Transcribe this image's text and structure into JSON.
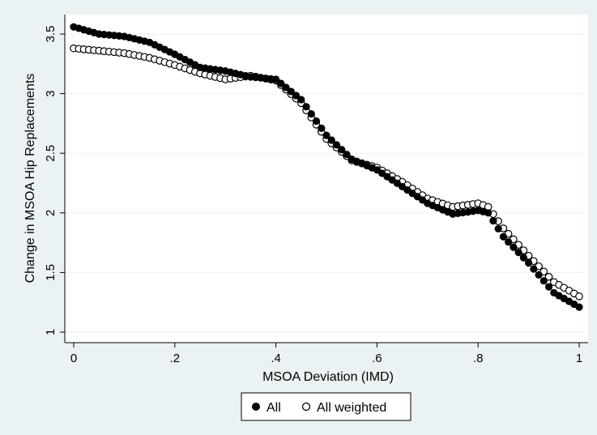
{
  "chart_data": {
    "type": "scatter",
    "xlabel": "MSOA Deviation (IMD)",
    "ylabel": "Change in MSOA Hip Replacements",
    "xlim": [
      0,
      1
    ],
    "ylim": [
      1,
      3.55
    ],
    "x_ticks": [
      {
        "value": 0,
        "label": "0"
      },
      {
        "value": 0.2,
        "label": ".2"
      },
      {
        "value": 0.4,
        "label": ".4"
      },
      {
        "value": 0.6,
        "label": ".6"
      },
      {
        "value": 0.8,
        "label": ".8"
      },
      {
        "value": 1,
        "label": "1"
      }
    ],
    "y_ticks": [
      {
        "value": 1,
        "label": "1"
      },
      {
        "value": 1.5,
        "label": "1.5"
      },
      {
        "value": 2,
        "label": "2"
      },
      {
        "value": 2.5,
        "label": "2.5"
      },
      {
        "value": 3,
        "label": "3"
      },
      {
        "value": 3.5,
        "label": "3.5"
      }
    ],
    "grid": "horizontal",
    "legend_position": "bottom",
    "series": [
      {
        "name": "All",
        "marker": "filled-circle",
        "color": "#000000",
        "x": [
          0,
          0.05,
          0.1,
          0.15,
          0.2,
          0.25,
          0.3,
          0.35,
          0.4,
          0.45,
          0.5,
          0.55,
          0.6,
          0.65,
          0.7,
          0.75,
          0.8,
          0.82,
          0.85,
          0.9,
          0.95,
          1
        ],
        "y": [
          3.56,
          3.5,
          3.48,
          3.43,
          3.33,
          3.22,
          3.19,
          3.14,
          3.12,
          2.95,
          2.65,
          2.45,
          2.36,
          2.22,
          2.08,
          1.99,
          2.02,
          2.0,
          1.8,
          1.58,
          1.33,
          1.21
        ]
      },
      {
        "name": "All weighted",
        "marker": "hollow-circle",
        "color": "#000000",
        "x": [
          0,
          0.05,
          0.1,
          0.15,
          0.2,
          0.25,
          0.3,
          0.35,
          0.4,
          0.45,
          0.5,
          0.55,
          0.6,
          0.65,
          0.7,
          0.75,
          0.8,
          0.82,
          0.85,
          0.9,
          0.95,
          1
        ],
        "y": [
          3.38,
          3.36,
          3.34,
          3.3,
          3.24,
          3.17,
          3.12,
          3.15,
          3.11,
          2.92,
          2.62,
          2.44,
          2.38,
          2.26,
          2.12,
          2.05,
          2.08,
          2.05,
          1.87,
          1.64,
          1.42,
          1.3
        ]
      }
    ]
  }
}
